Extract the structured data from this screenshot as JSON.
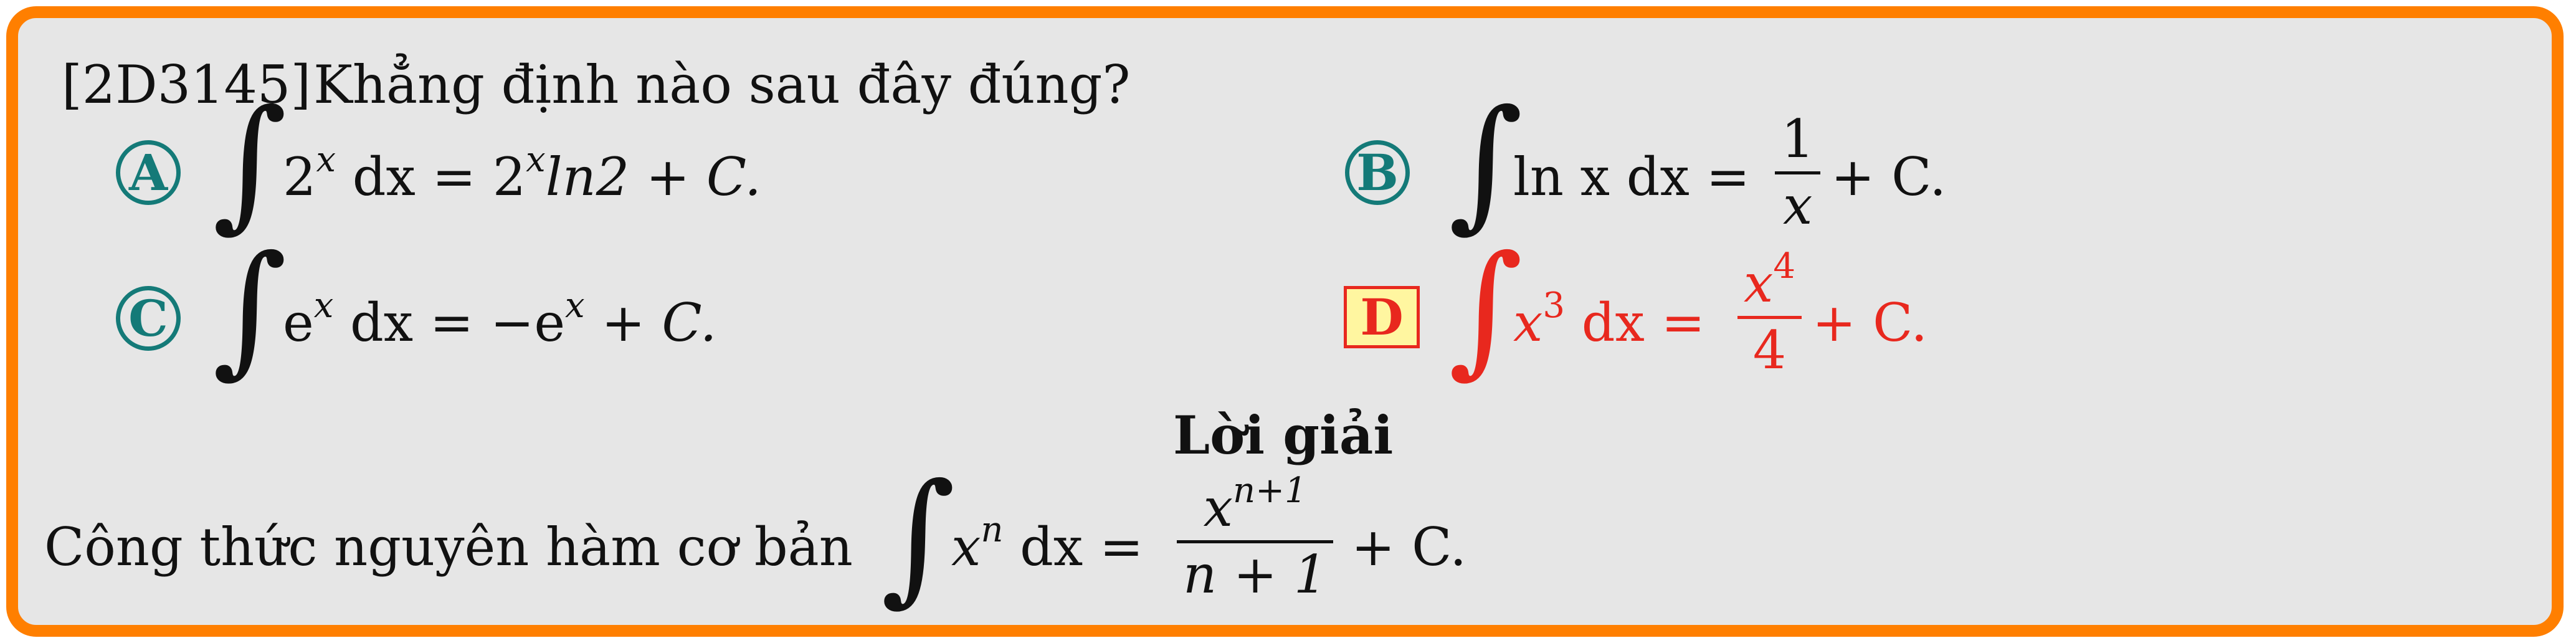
{
  "question": {
    "code": "[2D3145]",
    "text": "Khẳng định nào sau đây đúng?"
  },
  "options": [
    {
      "label": "A",
      "integrand_base": "2",
      "integrand_exp": "x",
      "dx": "dx =",
      "result_base": "2",
      "result_exp": "x",
      "result_rest": "ln2 + C."
    },
    {
      "label": "B",
      "integrand": "ln x dx =",
      "frac_num": "1",
      "frac_den": "x",
      "tail": "+ C."
    },
    {
      "label": "C",
      "integrand_base": "e",
      "integrand_exp": "x",
      "dx": "dx = −e",
      "result_exp": "x",
      "tail": "+ C."
    },
    {
      "label": "D",
      "integrand_base": "x",
      "integrand_exp": "3",
      "dx": "dx =",
      "frac_num_base": "x",
      "frac_num_exp": "4",
      "frac_den": "4",
      "tail": "+ C."
    }
  ],
  "solution": {
    "heading": "Lời giải",
    "text": "Công thức nguyên hàm cơ bản",
    "integrand_base": "x",
    "integrand_exp": "n",
    "dx": "dx =",
    "frac_num_base": "x",
    "frac_num_exp": "n+1",
    "frac_den": "n + 1",
    "tail": "+ C."
  },
  "integral_symbol": "∫",
  "colors": {
    "border": "#ff7f00",
    "background": "#e6e6e6",
    "option_label": "#147a78",
    "correct_answer": "#e8281e",
    "correct_label_fill": "#fff6a0"
  }
}
